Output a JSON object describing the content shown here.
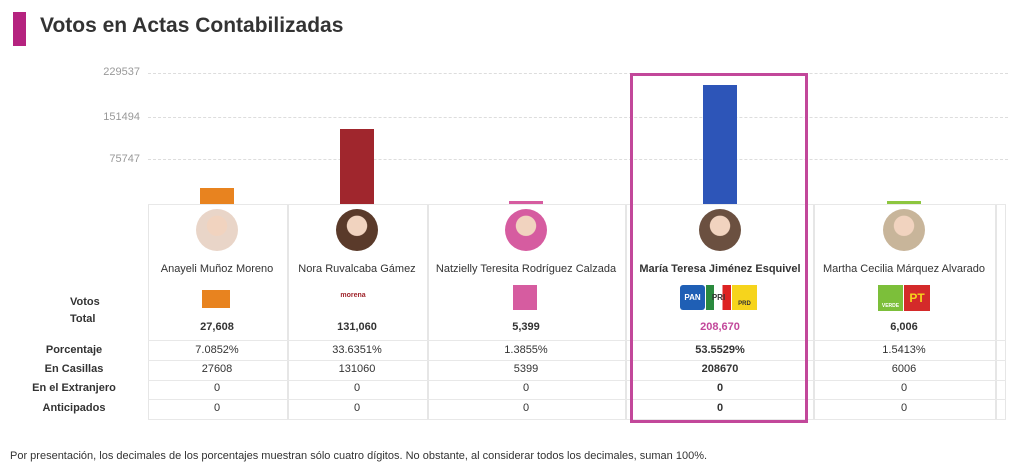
{
  "title": "Votos en Actas Contabilizadas",
  "row_labels": {
    "votos": "Votos",
    "total": "Total",
    "porcentaje": "Porcentaje",
    "casillas": "En Casillas",
    "extranjero": "En el Extranjero",
    "anticipados": "Anticipados"
  },
  "chart_data": {
    "type": "bar",
    "title": "Votos en Actas Contabilizadas",
    "categories": [
      "Anayeli Muñoz Moreno",
      "Nora Ruvalcaba Gámez",
      "Natzielly Teresita Rodríguez Calzada",
      "María Teresa Jiménez Esquivel",
      "Martha Cecilia Márquez Alvarado"
    ],
    "values": [
      27608,
      131060,
      5399,
      208670,
      6006
    ],
    "ylim": [
      0,
      229537
    ],
    "yticks": [
      "229537",
      "151494",
      "75747"
    ],
    "ytick_values": [
      229537,
      151494,
      75747
    ],
    "grid": true,
    "colors": [
      "#e8831f",
      "#a0262d",
      "#d65ca0",
      "#2d55b8",
      "#8dc63f"
    ]
  },
  "candidates": [
    {
      "name": "Anayeli Muñoz Moreno",
      "party": "MOVIMIENTO CIUDADANO",
      "total": "27,608",
      "pct": "7.0852%",
      "casillas": "27608",
      "extranjero": "0",
      "anticipados": "0"
    },
    {
      "name": "Nora Ruvalcaba Gámez",
      "party": "morena",
      "total": "131,060",
      "pct": "33.6351%",
      "casillas": "131060",
      "extranjero": "0",
      "anticipados": "0"
    },
    {
      "name": "Natzielly Teresita Rodríguez Calzada",
      "party": "FUERZA MÉXICO",
      "total": "5,399",
      "pct": "1.3855%",
      "casillas": "5399",
      "extranjero": "0",
      "anticipados": "0"
    },
    {
      "name": "María Teresa Jiménez Esquivel",
      "party": [
        "PAN",
        "PRI",
        "PRD"
      ],
      "total": "208,670",
      "pct": "53.5529%",
      "casillas": "208670",
      "extranjero": "0",
      "anticipados": "0"
    },
    {
      "name": "Martha Cecilia Márquez Alvarado",
      "party": [
        "VERDE",
        "PT"
      ],
      "total": "6,006",
      "pct": "1.5413%",
      "casillas": "6006",
      "extranjero": "0",
      "anticipados": "0"
    }
  ],
  "highlight_color": "#c2479a",
  "footnote": "Por presentación, los decimales de los porcentajes muestran sólo cuatro dígitos. No obstante, al considerar todos los decimales, suman 100%."
}
